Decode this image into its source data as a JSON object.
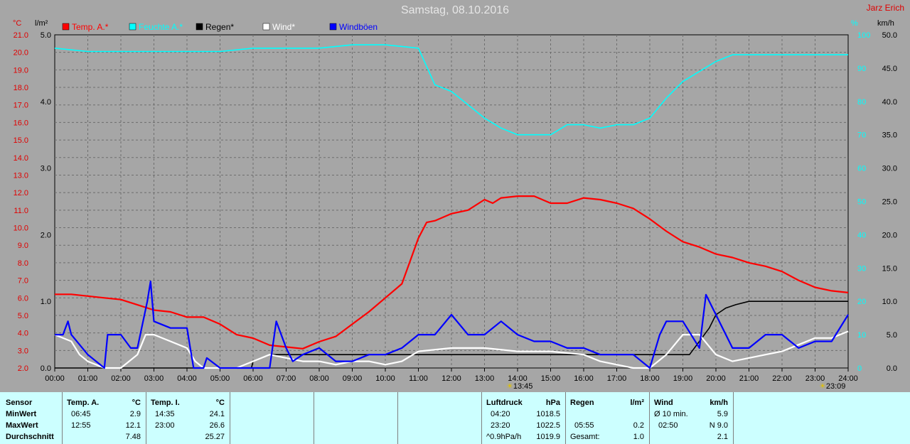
{
  "header": {
    "title": "Samstag, 08.10.2016",
    "author": "Jarz Erich"
  },
  "legend": [
    {
      "label": "Temp. A.*",
      "color": "#ff0000"
    },
    {
      "label": "Feuchte A.*",
      "color": "#00ffff"
    },
    {
      "label": "Regen*",
      "color": "#000000"
    },
    {
      "label": "Wind*",
      "color": "#ffffff"
    },
    {
      "label": "Windböen",
      "color": "#0000ff"
    }
  ],
  "chart_data": {
    "type": "line",
    "title": "Samstag, 08.10.2016",
    "axes": {
      "temperature": {
        "unit": "°C",
        "range": [
          2.0,
          21.0
        ],
        "ticks": [
          "2.0",
          "3.0",
          "4.0",
          "5.0",
          "6.0",
          "7.0",
          "8.0",
          "9.0",
          "10.0",
          "11.0",
          "12.0",
          "13.0",
          "14.0",
          "15.0",
          "16.0",
          "17.0",
          "18.0",
          "19.0",
          "20.0",
          "21.0"
        ],
        "color": "#e00000"
      },
      "rain": {
        "unit": "l/m²",
        "range": [
          0.0,
          5.0
        ],
        "ticks": [
          "0.0",
          "1.0",
          "2.0",
          "3.0",
          "4.0",
          "5.0"
        ]
      },
      "humidity": {
        "unit": "%",
        "range": [
          0,
          100
        ],
        "ticks": [
          "0",
          "10",
          "20",
          "30",
          "40",
          "50",
          "60",
          "70",
          "80",
          "90",
          "100"
        ],
        "color": "#00ffff"
      },
      "wind": {
        "unit": "km/h",
        "range": [
          0.0,
          50.0
        ],
        "ticks": [
          "0.0",
          "5.0",
          "10.0",
          "15.0",
          "20.0",
          "25.0",
          "30.0",
          "35.0",
          "40.0",
          "45.0",
          "50.0"
        ]
      },
      "time": {
        "range": [
          0,
          24
        ],
        "ticks": [
          "00:00",
          "01:00",
          "02:00",
          "03:00",
          "04:00",
          "05:00",
          "06:00",
          "07:00",
          "08:00",
          "09:00",
          "10:00",
          "11:00",
          "12:00",
          "13:00",
          "14:00",
          "15:00",
          "16:00",
          "17:00",
          "18:00",
          "19:00",
          "20:00",
          "21:00",
          "22:00",
          "23:00",
          "24:00"
        ]
      }
    },
    "grid": true,
    "series": [
      {
        "name": "Temp. A.*",
        "axis": "temperature",
        "color": "#ff0000",
        "x": [
          0,
          0.5,
          1,
          1.5,
          2,
          2.5,
          3,
          3.5,
          4,
          4.5,
          5,
          5.5,
          6,
          6.5,
          7,
          7.5,
          8,
          8.5,
          9,
          9.5,
          10,
          10.5,
          11,
          11.25,
          11.5,
          12,
          12.5,
          13,
          13.25,
          13.5,
          14,
          14.5,
          15,
          15.5,
          16,
          16.5,
          17,
          17.5,
          18,
          18.5,
          19,
          19.5,
          20,
          20.5,
          21,
          21.5,
          22,
          22.5,
          23,
          23.5,
          24
        ],
        "y": [
          6.2,
          6.2,
          6.1,
          6.0,
          5.9,
          5.6,
          5.3,
          5.2,
          4.9,
          4.9,
          4.5,
          3.9,
          3.7,
          3.3,
          3.2,
          3.1,
          3.5,
          3.8,
          4.5,
          5.2,
          6.0,
          6.8,
          9.4,
          10.3,
          10.4,
          10.8,
          11.0,
          11.6,
          11.4,
          11.7,
          11.8,
          11.8,
          11.4,
          11.4,
          11.7,
          11.6,
          11.4,
          11.1,
          10.5,
          9.8,
          9.2,
          8.9,
          8.5,
          8.3,
          8.0,
          7.8,
          7.5,
          7.0,
          6.6,
          6.4,
          6.3
        ]
      },
      {
        "name": "Feuchte A.*",
        "axis": "humidity",
        "color": "#00ffff",
        "x": [
          0,
          1,
          2,
          3,
          4,
          5,
          6,
          7,
          8,
          9,
          10,
          11,
          11.5,
          12,
          12.5,
          13,
          13.5,
          14,
          15,
          15.5,
          16,
          16.5,
          17,
          17.5,
          18,
          18.5,
          19,
          19.5,
          20,
          20.5,
          21,
          22,
          23,
          24
        ],
        "y": [
          96,
          95,
          95,
          95,
          95,
          95,
          96,
          96,
          96,
          97,
          97,
          96,
          85,
          83,
          79,
          75,
          72,
          70,
          70,
          73,
          73,
          72,
          73,
          73,
          75,
          81,
          86,
          89,
          92,
          94,
          94,
          94,
          94,
          94
        ]
      },
      {
        "name": "Regen*",
        "axis": "rain",
        "color": "#000000",
        "x": [
          0,
          5.95,
          6.0,
          6.5,
          7.0,
          7.5,
          8,
          19.2,
          19.5,
          19.8,
          20.0,
          20.3,
          20.6,
          21,
          22,
          23,
          24
        ],
        "y": [
          0,
          0,
          0.1,
          0.2,
          0.2,
          0.2,
          0.2,
          0.2,
          0.4,
          0.6,
          0.8,
          0.9,
          0.95,
          1.0,
          1.0,
          1.0,
          1.0
        ]
      },
      {
        "name": "Wind*",
        "axis": "wind",
        "color": "#ffffff",
        "x": [
          0,
          0.5,
          0.75,
          1,
          1.5,
          2,
          2.5,
          2.75,
          3,
          3.5,
          4,
          4.25,
          4.5,
          5,
          5.5,
          6,
          6.5,
          7,
          7.5,
          8,
          8.5,
          9,
          9.5,
          10,
          10.5,
          11,
          12,
          13,
          14,
          15,
          16,
          16.5,
          17,
          17.5,
          18,
          18.5,
          19,
          19.5,
          20,
          20.5,
          21,
          21.5,
          22,
          22.5,
          23,
          23.5,
          24
        ],
        "y": [
          5,
          4,
          2,
          1,
          0,
          0,
          2,
          5,
          5,
          4,
          3,
          1,
          0,
          0,
          0,
          1,
          2,
          1.5,
          1,
          1,
          0.5,
          1,
          1,
          0.5,
          1,
          2.5,
          3,
          3,
          2.5,
          2.5,
          2,
          1,
          0.5,
          0,
          0,
          2,
          5,
          5,
          2,
          1,
          1.5,
          2,
          2.5,
          3.5,
          4.5,
          4.5,
          5.5
        ]
      },
      {
        "name": "Windböen",
        "axis": "wind",
        "color": "#0000ff",
        "x": [
          0,
          0.25,
          0.4,
          0.5,
          1,
          1.5,
          1.6,
          2,
          2.3,
          2.5,
          2.8,
          2.9,
          3,
          3.5,
          4,
          4.1,
          4.2,
          4.5,
          4.6,
          5,
          6,
          6.5,
          6.7,
          7,
          7.2,
          7.5,
          8,
          8.5,
          9,
          9.5,
          10,
          10.5,
          11,
          11.5,
          12,
          12.5,
          13,
          13.5,
          14,
          14.5,
          15,
          15.5,
          16,
          16.5,
          17,
          17.5,
          18,
          18.3,
          18.5,
          19,
          19.5,
          19.7,
          20,
          20.5,
          21,
          21.5,
          22,
          22.5,
          23,
          23.5,
          24
        ],
        "y": [
          5,
          5,
          7,
          5,
          2,
          0,
          5,
          5,
          3,
          3,
          10,
          13,
          7,
          6,
          6,
          3,
          0,
          0,
          1.5,
          0,
          0,
          0,
          7,
          3,
          1,
          2,
          3,
          1,
          1,
          2,
          2,
          3,
          5,
          5,
          8,
          5,
          5,
          7,
          5,
          4,
          4,
          3,
          3,
          2,
          2,
          2,
          0,
          5,
          7,
          7,
          3,
          11,
          8,
          3,
          3,
          5,
          5,
          3,
          4,
          4,
          8
        ]
      }
    ]
  },
  "stats": {
    "sensor": {
      "header": "Sensor",
      "rows": [
        "MinWert",
        "MaxWert",
        "Durchschnitt"
      ]
    },
    "temp_a": {
      "header": "Temp. A.",
      "unit": "°C",
      "times": [
        "06:45",
        "12:55",
        ""
      ],
      "values": [
        "2.9",
        "12.1",
        "7.48"
      ]
    },
    "temp_i": {
      "header": "Temp. I.",
      "unit": "°C",
      "times": [
        "14:35",
        "23:00",
        ""
      ],
      "values": [
        "24.1",
        "26.6",
        "25.27"
      ]
    },
    "pressure": {
      "header": "Luftdruck",
      "unit": "hPa",
      "times": [
        "04:20",
        "23:20",
        "^0.9hPa/h"
      ],
      "values": [
        "1018.5",
        "1022.5",
        "1019.9"
      ]
    },
    "rain": {
      "header": "Regen",
      "unit": "l/m²",
      "labels": [
        "",
        "05:55",
        "Gesamt:"
      ],
      "values": [
        "",
        "0.2",
        "1.0"
      ]
    },
    "wind": {
      "header": "Wind",
      "unit": "km/h",
      "labels": [
        "Ø 10 min.",
        "02:50",
        ""
      ],
      "values": [
        "5.9",
        "N 9.0",
        "2.1"
      ]
    }
  },
  "sun": {
    "sunrise": "13:45",
    "sunset": "23:09"
  }
}
